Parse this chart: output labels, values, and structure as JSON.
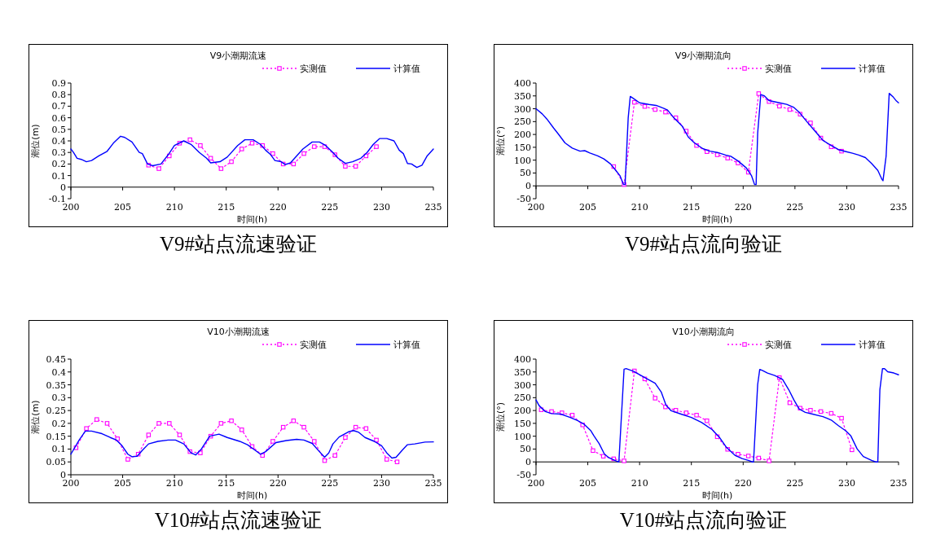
{
  "chart_data": [
    {
      "type": "line",
      "title": "V9小潮期流速",
      "xlabel": "时间(h)",
      "ylabel": "潮位(m)",
      "legend": "top right",
      "xlim": [
        200,
        235
      ],
      "ylim": [
        -0.1,
        0.9
      ],
      "xticks": [
        200,
        205,
        210,
        215,
        220,
        225,
        230,
        235
      ],
      "yticks": [
        -0.1,
        0,
        0.1,
        0.2,
        0.3,
        0.4,
        0.5,
        0.6,
        0.7,
        0.8,
        0.9
      ],
      "annotations": [
        "V9#站点流速验证"
      ],
      "series": [
        {
          "name": "实测值",
          "color": "#ff00ff",
          "marker": "square",
          "line_style": "dotted",
          "x": [
            207.5,
            208.5,
            209.5,
            210.5,
            211.5,
            212.5,
            213.5,
            214.5,
            215.5,
            216.5,
            217.5,
            218.5,
            219.5,
            220.5,
            221.5,
            222.5,
            223.5,
            224.5,
            225.5,
            226.5,
            227.5,
            228.5,
            229.5
          ],
          "values": [
            0.19,
            0.16,
            0.27,
            0.38,
            0.41,
            0.36,
            0.25,
            0.16,
            0.22,
            0.33,
            0.38,
            0.36,
            0.29,
            0.2,
            0.2,
            0.29,
            0.35,
            0.35,
            0.28,
            0.18,
            0.18,
            0.27,
            0.35
          ]
        },
        {
          "name": "计算值",
          "color": "#0000ff",
          "marker": "none",
          "line_style": "solid",
          "x": [
            200,
            200.25,
            200.6,
            201,
            201.5,
            202,
            202.7,
            203.5,
            204.1,
            204.8,
            205.2,
            205.9,
            206.6,
            206.9,
            207.4,
            207.9,
            208.7,
            209.4,
            210,
            210.9,
            211.6,
            212.4,
            213.1,
            213.5,
            214.4,
            215.1,
            216.1,
            216.8,
            217.6,
            218.3,
            218.8,
            219.3,
            219.7,
            220.3,
            220.7,
            221.2,
            221.8,
            222.4,
            223.3,
            224,
            224.6,
            225.3,
            225.8,
            226.5,
            227.2,
            228,
            228.6,
            229.2,
            229.8,
            230.5,
            231.2,
            231.7,
            232.1,
            232.5,
            232.9,
            233.4,
            233.9,
            234.4,
            235
          ],
          "values": [
            0.33,
            0.3,
            0.25,
            0.24,
            0.22,
            0.23,
            0.27,
            0.31,
            0.38,
            0.44,
            0.43,
            0.39,
            0.3,
            0.29,
            0.2,
            0.185,
            0.2,
            0.28,
            0.36,
            0.4,
            0.37,
            0.3,
            0.25,
            0.21,
            0.22,
            0.26,
            0.36,
            0.41,
            0.41,
            0.37,
            0.32,
            0.28,
            0.23,
            0.22,
            0.195,
            0.21,
            0.27,
            0.33,
            0.39,
            0.39,
            0.36,
            0.3,
            0.25,
            0.205,
            0.22,
            0.25,
            0.3,
            0.37,
            0.42,
            0.42,
            0.4,
            0.32,
            0.29,
            0.205,
            0.2,
            0.17,
            0.19,
            0.27,
            0.33
          ]
        }
      ]
    },
    {
      "type": "line",
      "title": "V9小潮期流向",
      "xlabel": "时间(h)",
      "ylabel": "潮位(°)",
      "legend": "top right",
      "xlim": [
        200,
        235
      ],
      "ylim": [
        -50,
        400
      ],
      "xticks": [
        200,
        205,
        210,
        215,
        220,
        225,
        230,
        235
      ],
      "yticks": [
        -50,
        0,
        50,
        100,
        150,
        200,
        250,
        300,
        350,
        400
      ],
      "annotations": [
        "V9#站点流向验证"
      ],
      "series": [
        {
          "name": "实测值",
          "color": "#ff00ff",
          "marker": "square",
          "line_style": "dotted",
          "x": [
            207.5,
            208.5,
            209.5,
            210.5,
            211.5,
            212.5,
            213.5,
            214.5,
            215.5,
            216.5,
            217.5,
            218.5,
            219.5,
            220.5,
            221.5,
            222.5,
            223.5,
            224.5,
            225.5,
            226.5,
            227.5,
            228.5,
            229.5
          ],
          "values": [
            75,
            5,
            325,
            309,
            297,
            287,
            265,
            213,
            157,
            133,
            121,
            108,
            89,
            53,
            359,
            328,
            310,
            297,
            279,
            245,
            186,
            152,
            135
          ]
        },
        {
          "name": "计算值",
          "color": "#0000ff",
          "marker": "none",
          "line_style": "solid",
          "x": [
            200,
            200.6,
            201.05,
            201.7,
            202.15,
            202.8,
            203.5,
            204.25,
            204.7,
            205.2,
            205.95,
            206.55,
            207.2,
            207.7,
            208.1,
            208.45,
            208.6,
            208.9,
            209.1,
            209.4,
            210,
            210.9,
            211.6,
            212.3,
            212.7,
            213.3,
            214.1,
            214.7,
            215.3,
            216.1,
            216.8,
            217.5,
            218.3,
            218.8,
            219.5,
            220.3,
            220.8,
            221.1,
            221.25,
            221.4,
            221.7,
            222.05,
            222.5,
            223.5,
            224.2,
            224.9,
            225.4,
            226,
            227,
            227.7,
            228.5,
            229.2,
            229.95,
            230.55,
            231.15,
            231.8,
            232.4,
            233,
            233.4,
            233.5,
            233.8,
            234.1,
            234.5,
            234.8,
            235
          ],
          "values": [
            300,
            280,
            260,
            225,
            202,
            167,
            147,
            135,
            137,
            128,
            117,
            105,
            85,
            60,
            40,
            5,
            5,
            265,
            348,
            340,
            323,
            317,
            313,
            302,
            295,
            265,
            233,
            190,
            167,
            145,
            135,
            130,
            120,
            115,
            97,
            70,
            40,
            5,
            5,
            205,
            355,
            350,
            332,
            323,
            317,
            305,
            287,
            257,
            210,
            177,
            157,
            141,
            133,
            127,
            120,
            110,
            87,
            60,
            25,
            20,
            115,
            360,
            345,
            330,
            323
          ]
        }
      ]
    },
    {
      "type": "line",
      "title": "V10小潮期流速",
      "xlabel": "时间(h)",
      "ylabel": "潮位(m)",
      "legend": "top right",
      "xlim": [
        200,
        235
      ],
      "ylim": [
        0,
        0.45
      ],
      "xticks": [
        200,
        205,
        210,
        215,
        220,
        225,
        230,
        235
      ],
      "yticks": [
        0,
        0.05,
        0.1,
        0.15,
        0.2,
        0.25,
        0.3,
        0.35,
        0.4,
        0.45
      ],
      "annotations": [
        "V10#站点流速验证"
      ],
      "series": [
        {
          "name": "实测值",
          "color": "#ff00ff",
          "marker": "square",
          "line_style": "dotted",
          "x": [
            200.5,
            201.5,
            202.5,
            203.5,
            204.5,
            205.5,
            206.5,
            207.5,
            208.5,
            209.5,
            210.5,
            211.5,
            212.5,
            213.5,
            214.5,
            215.5,
            216.5,
            217.5,
            218.5,
            219.5,
            220.5,
            221.5,
            222.5,
            223.5,
            224.5,
            225.5,
            226.5,
            227.5,
            228.5,
            229.5,
            230.5,
            231.5
          ],
          "values": [
            0.105,
            0.18,
            0.215,
            0.2,
            0.14,
            0.06,
            0.08,
            0.155,
            0.2,
            0.2,
            0.155,
            0.09,
            0.085,
            0.15,
            0.2,
            0.21,
            0.175,
            0.11,
            0.075,
            0.13,
            0.185,
            0.21,
            0.185,
            0.13,
            0.055,
            0.075,
            0.145,
            0.185,
            0.18,
            0.135,
            0.06,
            0.05
          ]
        },
        {
          "name": "计算值",
          "color": "#0000ff",
          "marker": "none",
          "line_style": "solid",
          "x": [
            200,
            200.8,
            201.4,
            202,
            203,
            203.8,
            204.4,
            204.9,
            205.5,
            205.9,
            206.4,
            206.9,
            207.5,
            208.4,
            209.4,
            210.1,
            210.9,
            211.6,
            212.05,
            212.6,
            213.4,
            214.3,
            215.1,
            216.3,
            217.05,
            217.8,
            218.3,
            218.8,
            219.8,
            220.8,
            221.8,
            222.5,
            223.3,
            224,
            224.5,
            224.9,
            225.3,
            225.9,
            226.8,
            227.3,
            227.8,
            228.4,
            229.3,
            230,
            230.5,
            231,
            231.4,
            232,
            232.5,
            233.2,
            234.2,
            235
          ],
          "values": [
            0.08,
            0.135,
            0.17,
            0.17,
            0.16,
            0.145,
            0.135,
            0.115,
            0.08,
            0.07,
            0.072,
            0.095,
            0.12,
            0.13,
            0.135,
            0.135,
            0.12,
            0.085,
            0.077,
            0.1,
            0.15,
            0.158,
            0.145,
            0.13,
            0.117,
            0.095,
            0.08,
            0.09,
            0.125,
            0.133,
            0.138,
            0.135,
            0.122,
            0.09,
            0.068,
            0.085,
            0.12,
            0.147,
            0.167,
            0.172,
            0.165,
            0.145,
            0.13,
            0.113,
            0.085,
            0.065,
            0.068,
            0.096,
            0.117,
            0.12,
            0.127,
            0.128
          ]
        }
      ]
    },
    {
      "type": "line",
      "title": "V10小潮期流向",
      "xlabel": "时间(h)",
      "ylabel": "潮位(°)",
      "legend": "top right",
      "xlim": [
        200,
        235
      ],
      "ylim": [
        -50,
        400
      ],
      "xticks": [
        200,
        205,
        210,
        215,
        220,
        225,
        230,
        235
      ],
      "yticks": [
        -50,
        0,
        50,
        100,
        150,
        200,
        250,
        300,
        350,
        400
      ],
      "annotations": [
        "V10#站点流向验证"
      ],
      "series": [
        {
          "name": "实测值",
          "color": "#ff00ff",
          "marker": "square",
          "line_style": "dotted",
          "x": [
            200.5,
            201.5,
            202.5,
            203.5,
            204.5,
            205.5,
            206.5,
            207.5,
            208.5,
            209.5,
            210.5,
            211.5,
            212.5,
            213.5,
            214.5,
            215.5,
            216.5,
            217.5,
            218.5,
            219.5,
            220.5,
            221.5,
            222.5,
            223.5,
            224.5,
            225.5,
            226.5,
            227.5,
            228.5,
            229.5,
            230.5
          ],
          "values": [
            203,
            196,
            191,
            182,
            144,
            44,
            22,
            12,
            4,
            354,
            323,
            248,
            214,
            201,
            191,
            182,
            160,
            98,
            49,
            30,
            23,
            15,
            4,
            328,
            230,
            209,
            201,
            196,
            189,
            170,
            47
          ]
        },
        {
          "name": "计算值",
          "color": "#0000ff",
          "marker": "none",
          "line_style": "solid",
          "x": [
            200,
            200.3,
            200.9,
            201.5,
            202.4,
            203.3,
            204,
            204.6,
            205.3,
            205.6,
            206.1,
            206.6,
            207.05,
            207.7,
            208,
            208.5,
            208.7,
            209.4,
            210.6,
            211.5,
            212.1,
            212.55,
            213.05,
            214,
            215,
            216,
            217,
            217.7,
            218.4,
            219.2,
            219.9,
            220.5,
            220.9,
            221,
            221.4,
            221.6,
            221.85,
            222.35,
            223.05,
            223.8,
            224.4,
            224.9,
            225.4,
            226,
            226.7,
            227.7,
            228.5,
            229.2,
            229.9,
            230.4,
            231,
            231.6,
            232.4,
            232.8,
            233,
            233.2,
            233.45,
            233.65,
            233.95,
            234.55,
            235
          ],
          "values": [
            241,
            219,
            196,
            188,
            186,
            173,
            161,
            148,
            121,
            101,
            71,
            31,
            16,
            4,
            0,
            361,
            363,
            353,
            326,
            306,
            271,
            221,
            199,
            186,
            173,
            153,
            126,
            96,
            56,
            26,
            13,
            6,
            0,
            0,
            301,
            360,
            356,
            346,
            336,
            321,
            281,
            241,
            206,
            193,
            186,
            176,
            163,
            141,
            121,
            101,
            51,
            21,
            6,
            0,
            0,
            281,
            363,
            363,
            351,
            346,
            339
          ]
        }
      ]
    }
  ]
}
